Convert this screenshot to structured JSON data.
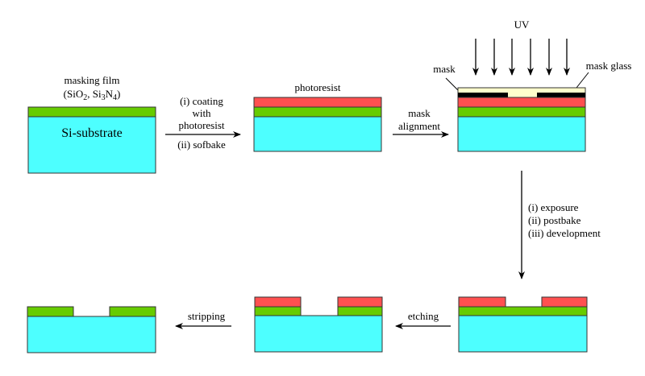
{
  "colors": {
    "substrate": "#4dffff",
    "masking_film": "#66cc00",
    "photoresist": "#ff5050",
    "mask": "#000000",
    "mask_glass": "#ffffcc"
  },
  "labels": {
    "masking_film": "masking film",
    "masking_film_formula": {
      "a": "(SiO",
      "a_sub": "2",
      "b": ", Si",
      "b_sub": "3",
      "c": "N",
      "c_sub": "4",
      "d": ")"
    },
    "substrate": "Si-substrate",
    "photoresist": "photoresist",
    "uv": "UV",
    "mask": "mask",
    "mask_glass": "mask glass"
  },
  "steps": {
    "coating_line1": "(i) coating",
    "coating_line2": "with",
    "coating_line3": "photoresist",
    "softbake": "(ii) sofbake",
    "mask_alignment_line1": "mask",
    "mask_alignment_line2": "alignment",
    "exposure": "(i) exposure",
    "postbake": "(ii) postbake",
    "development": "(iii) development",
    "etching": "etching",
    "stripping": "stripping"
  }
}
